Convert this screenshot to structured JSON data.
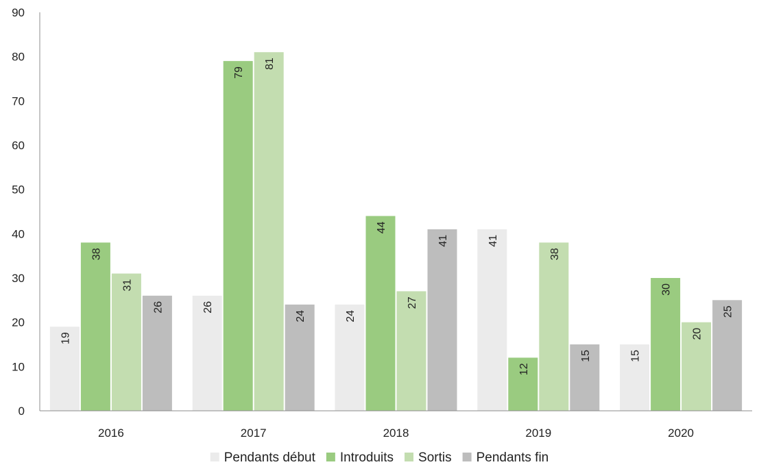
{
  "chart_data": {
    "type": "bar",
    "title": "",
    "xlabel": "",
    "ylabel": "",
    "categories": [
      "2016",
      "2017",
      "2018",
      "2019",
      "2020"
    ],
    "ylim": [
      0,
      90
    ],
    "yticks": [
      0,
      10,
      20,
      30,
      40,
      50,
      60,
      70,
      80,
      90
    ],
    "grid": false,
    "legend_position": "bottom",
    "series": [
      {
        "name": "Pendants début",
        "color": "#ebebeb",
        "values": [
          19,
          26,
          24,
          41,
          15
        ]
      },
      {
        "name": "Introduits",
        "color": "#9acb80",
        "values": [
          38,
          79,
          44,
          12,
          30
        ]
      },
      {
        "name": "Sortis",
        "color": "#c3ddb0",
        "values": [
          31,
          81,
          27,
          38,
          20
        ]
      },
      {
        "name": "Pendants fin",
        "color": "#bdbdbd",
        "values": [
          26,
          24,
          41,
          15,
          25
        ]
      }
    ]
  }
}
